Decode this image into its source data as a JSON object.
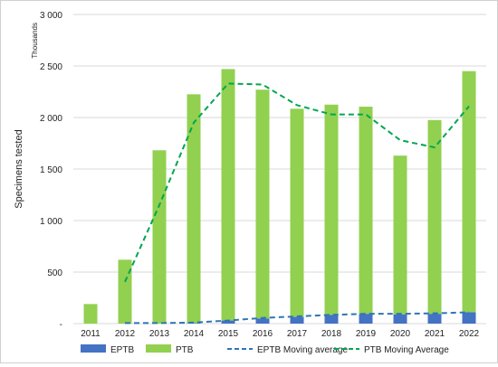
{
  "chart_data": {
    "type": "bar",
    "stacked": true,
    "units_note": "Thousands",
    "ylabel": "Specimens tested",
    "xlabel": "",
    "ylim": [
      0,
      3000
    ],
    "yticks": [
      0,
      500,
      1000,
      1500,
      2000,
      2500,
      3000
    ],
    "ytick_labels": [
      "-",
      "500",
      "1 000",
      "1 500",
      "2 000",
      "2 500",
      "3 000"
    ],
    "grid": true,
    "legend_position": "bottom",
    "categories": [
      "2011",
      "2012",
      "2013",
      "2014",
      "2015",
      "2016",
      "2017",
      "2018",
      "2019",
      "2020",
      "2021",
      "2022"
    ],
    "series": [
      {
        "name": "EPTB",
        "kind": "bar",
        "color": "#4472c4",
        "values": [
          0,
          0,
          2,
          5,
          30,
          50,
          65,
          85,
          95,
          90,
          95,
          110
        ]
      },
      {
        "name": "PTB",
        "kind": "bar",
        "color": "#92d050",
        "values": [
          190,
          620,
          1680,
          2220,
          2440,
          2220,
          2020,
          2040,
          2010,
          1540,
          1880,
          2340
        ]
      },
      {
        "name": "EPTB Moving average",
        "kind": "line",
        "color": "#2e75b6",
        "dash": true,
        "values": [
          null,
          5,
          5,
          10,
          30,
          55,
          70,
          85,
          95,
          95,
          100,
          110
        ]
      },
      {
        "name": "PTB Moving Average",
        "kind": "line",
        "color": "#00a651",
        "dash": true,
        "values": [
          null,
          405,
          1150,
          1950,
          2330,
          2320,
          2120,
          2030,
          2030,
          1780,
          1710,
          2110
        ]
      }
    ]
  }
}
